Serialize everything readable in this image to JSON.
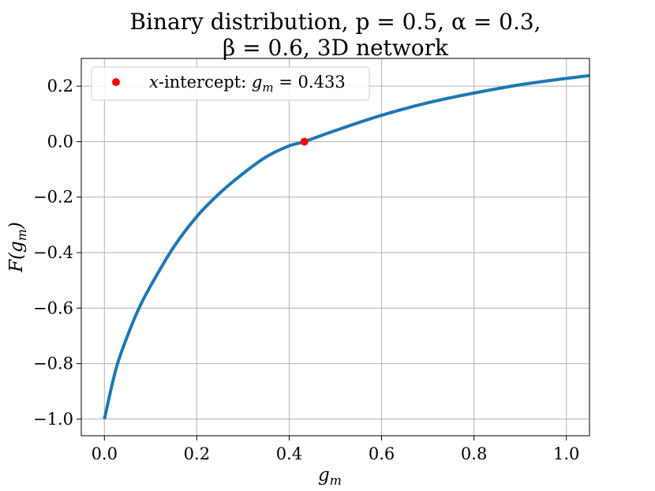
{
  "chart_data": {
    "type": "line",
    "title_line1": "Binary distribution, p = 0.5, α = 0.3,",
    "title_line2": "β = 0.6, 3D network",
    "xlabel": "g_m",
    "ylabel": "F(g_m)",
    "xlim": [
      -0.05,
      1.05
    ],
    "ylim": [
      -1.06,
      0.3
    ],
    "xticks": [
      0.0,
      0.2,
      0.4,
      0.6,
      0.8,
      1.0
    ],
    "xtick_labels": [
      "0.0",
      "0.2",
      "0.4",
      "0.6",
      "0.8",
      "1.0"
    ],
    "yticks": [
      0.2,
      0.0,
      -0.2,
      -0.4,
      -0.6,
      -0.8,
      -1.0
    ],
    "ytick_labels": [
      "0.2",
      "0.0",
      "−0.2",
      "−0.4",
      "−0.6",
      "−0.8",
      "−1.0"
    ],
    "grid": true,
    "legend_position": "top-left",
    "legend_label": "x-intercept: g_m = 0.433",
    "series": [
      {
        "color": "#1f77b4",
        "x": [
          0.0,
          0.025,
          0.05,
          0.075,
          0.1,
          0.15,
          0.2,
          0.25,
          0.3,
          0.35,
          0.4,
          0.433,
          0.5,
          0.6,
          0.7,
          0.8,
          0.9,
          1.0,
          1.05
        ],
        "y": [
          -1.0,
          -0.82,
          -0.7,
          -0.6,
          -0.52,
          -0.38,
          -0.27,
          -0.185,
          -0.115,
          -0.055,
          -0.015,
          0.0,
          0.04,
          0.095,
          0.14,
          0.175,
          0.205,
          0.228,
          0.238
        ]
      }
    ],
    "points": [
      {
        "label": "x-intercept",
        "x": 0.433,
        "y": 0.0,
        "color": "#ff0000"
      }
    ]
  }
}
